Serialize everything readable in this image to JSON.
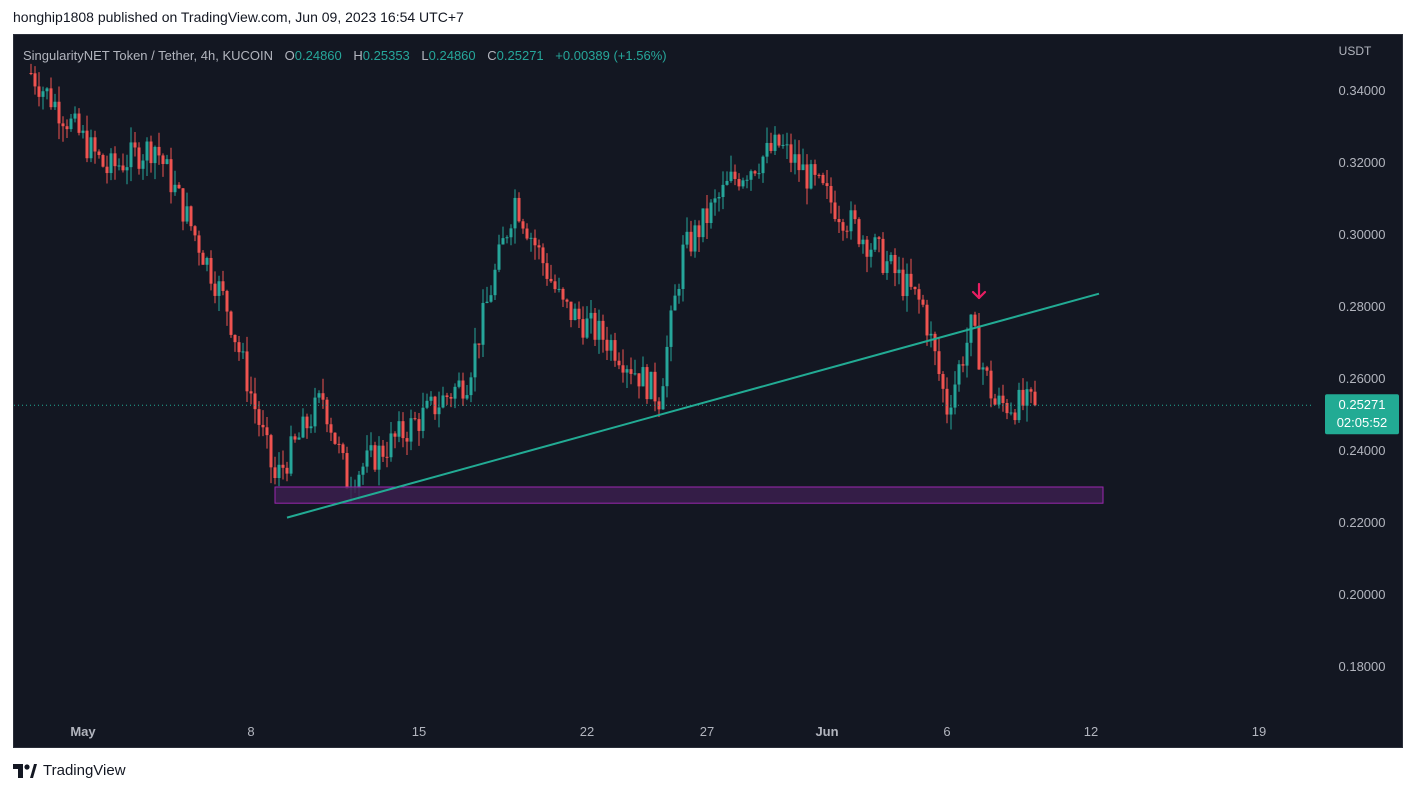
{
  "header": {
    "publisher_line": "honghip1808 published on TradingView.com, Jun 09, 2023 16:54 UTC+7"
  },
  "legend": {
    "symbol": "SingularityNET Token / Tether, 4h, KUCOIN",
    "o_label": "O",
    "o_value": "0.24860",
    "h_label": "H",
    "h_value": "0.25353",
    "l_label": "L",
    "l_value": "0.24860",
    "c_label": "C",
    "c_value": "0.25271",
    "change": "+0.00389 (+1.56%)"
  },
  "axis": {
    "currency": "USDT",
    "price_badge": "0.25271",
    "countdown": "02:05:52"
  },
  "footer": {
    "brand": "TradingView"
  },
  "colors": {
    "background": "#131722",
    "up": "#26a69a",
    "down": "#ef5350",
    "trendline": "#22ab94",
    "zone_border": "#9c27b0",
    "zone_fill": "#3b1f4d",
    "arrow": "#e91e63",
    "text": "#b2b5be"
  },
  "chart_data": {
    "type": "candlestick",
    "timeframe": "4h",
    "ylim": [
      0.17,
      0.348
    ],
    "y_ticks": [
      "0.34000",
      "0.32000",
      "0.30000",
      "0.28000",
      "0.26000",
      "0.24000",
      "0.22000",
      "0.20000",
      "0.18000"
    ],
    "x_ticks": [
      {
        "label": "May",
        "date": "2023-05-01",
        "bold": true
      },
      {
        "label": "8",
        "date": "2023-05-08",
        "bold": false
      },
      {
        "label": "15",
        "date": "2023-05-15",
        "bold": false
      },
      {
        "label": "22",
        "date": "2023-05-22",
        "bold": false
      },
      {
        "label": "27",
        "date": "2023-05-27",
        "bold": false
      },
      {
        "label": "Jun",
        "date": "2023-06-01",
        "bold": true
      },
      {
        "label": "6",
        "date": "2023-06-06",
        "bold": false
      },
      {
        "label": "12",
        "date": "2023-06-12",
        "bold": false
      },
      {
        "label": "19",
        "date": "2023-06-19",
        "bold": false
      }
    ],
    "last_price": 0.25271,
    "key_closes": [
      {
        "date": "2023-04-28T20:00",
        "close": 0.345
      },
      {
        "date": "2023-05-02",
        "close": 0.318
      },
      {
        "date": "2023-05-04",
        "close": 0.325
      },
      {
        "date": "2023-05-07",
        "close": 0.28
      },
      {
        "date": "2023-05-09",
        "close": 0.232
      },
      {
        "date": "2023-05-11",
        "close": 0.255
      },
      {
        "date": "2023-05-12",
        "close": 0.232
      },
      {
        "date": "2023-05-17",
        "close": 0.26
      },
      {
        "date": "2023-05-19",
        "close": 0.31
      },
      {
        "date": "2023-05-21",
        "close": 0.28
      },
      {
        "date": "2023-05-23",
        "close": 0.27
      },
      {
        "date": "2023-05-25",
        "close": 0.255
      },
      {
        "date": "2023-05-26",
        "close": 0.295
      },
      {
        "date": "2023-05-28",
        "close": 0.315
      },
      {
        "date": "2023-05-30",
        "close": 0.325
      },
      {
        "date": "2023-06-03",
        "close": 0.296
      },
      {
        "date": "2023-06-05",
        "close": 0.28
      },
      {
        "date": "2023-06-06",
        "close": 0.252
      },
      {
        "date": "2023-06-07",
        "close": 0.274
      },
      {
        "date": "2023-06-08",
        "close": 0.253
      },
      {
        "date": "2023-06-09T16:00",
        "close": 0.25271
      }
    ],
    "trendline": {
      "start": {
        "date": "2023-05-09T12:00",
        "price": 0.2215
      },
      "end": {
        "date": "2023-06-12T08:00",
        "price": 0.2837
      }
    },
    "support_zone": {
      "start": "2023-05-09",
      "end": "2023-06-12T12:00",
      "low": 0.2255,
      "high": 0.23
    },
    "arrow_marker": {
      "date": "2023-06-07T08:00",
      "price": 0.2825,
      "direction": "down"
    }
  }
}
